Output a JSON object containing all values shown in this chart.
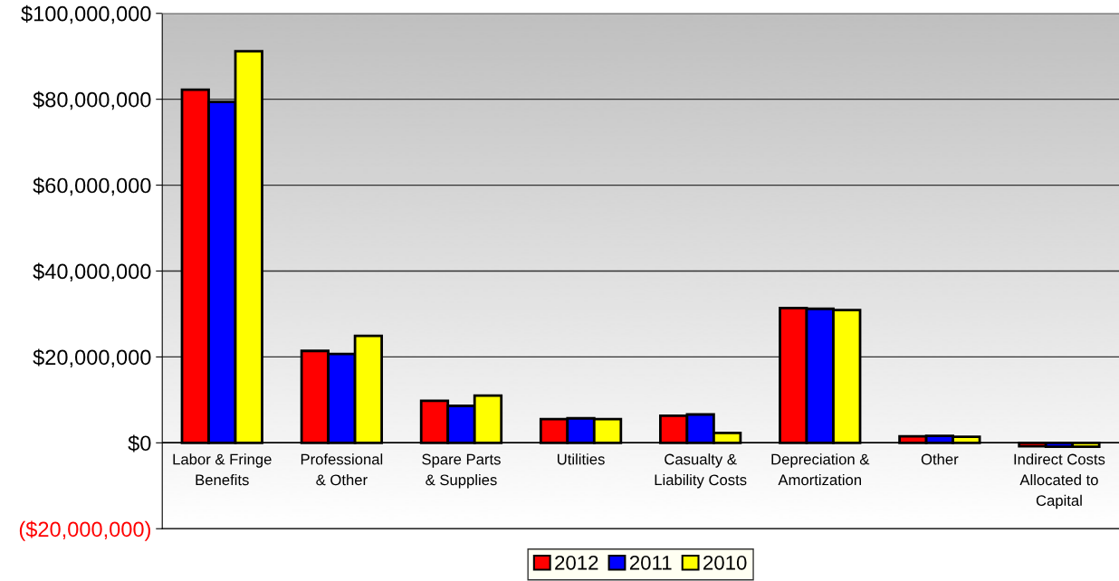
{
  "chart_data": {
    "type": "bar",
    "categories": [
      "Labor & Fringe\nBenefits",
      "Professional\n& Other",
      "Spare Parts\n& Supplies",
      "Utilities",
      "Casualty &\nLiability Costs",
      "Depreciation &\nAmortization",
      "Other",
      "Indirect Costs\nAllocated to\nCapital"
    ],
    "series": [
      {
        "name": "2012",
        "color": "#ff0000",
        "values": [
          82200000,
          21400000,
          9800000,
          5500000,
          6300000,
          31400000,
          1500000,
          -800000
        ]
      },
      {
        "name": "2011",
        "color": "#0000ff",
        "values": [
          79400000,
          20700000,
          8600000,
          5700000,
          6600000,
          31200000,
          1600000,
          -900000
        ]
      },
      {
        "name": "2010",
        "color": "#ffff00",
        "values": [
          91200000,
          24900000,
          11000000,
          5500000,
          2300000,
          30900000,
          1400000,
          -900000
        ]
      }
    ],
    "ylim": [
      -20000000,
      100000000
    ],
    "yticks": [
      {
        "value": -20000000,
        "label": "($20,000,000)"
      },
      {
        "value": 0,
        "label": "$0"
      },
      {
        "value": 20000000,
        "label": "$20,000,000"
      },
      {
        "value": 40000000,
        "label": "$40,000,000"
      },
      {
        "value": 60000000,
        "label": "$60,000,000"
      },
      {
        "value": 80000000,
        "label": "$80,000,000"
      },
      {
        "value": 100000000,
        "label": "$100,000,000"
      }
    ],
    "grid": "y",
    "legend": "bottom"
  }
}
